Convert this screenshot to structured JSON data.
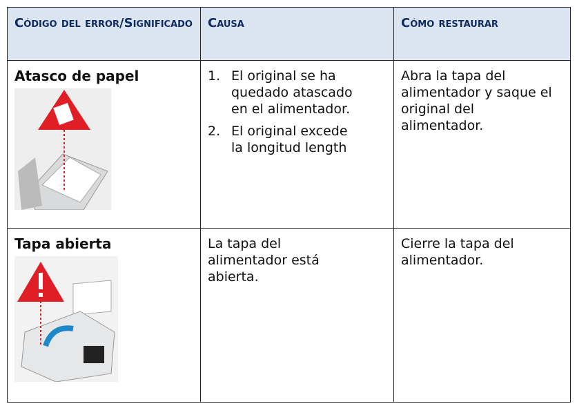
{
  "table": {
    "header": [
      "Código del error/Significado",
      "Causa",
      "Cómo restaurar"
    ],
    "rows": [
      {
        "title": "Atasco de papel",
        "cause_list": [
          {
            "number": "1.",
            "text": "El original se ha quedado atascado en el alimentador."
          },
          {
            "number": "2.",
            "text": "El original excede la longitud length"
          }
        ],
        "restore": "Abra la tapa del alimentador y saque el original del alimentador."
      },
      {
        "title": "Tapa abierta",
        "cause": "La tapa del alimentador está abierta.",
        "restore": "Cierre la tapa del alimentador."
      }
    ]
  }
}
